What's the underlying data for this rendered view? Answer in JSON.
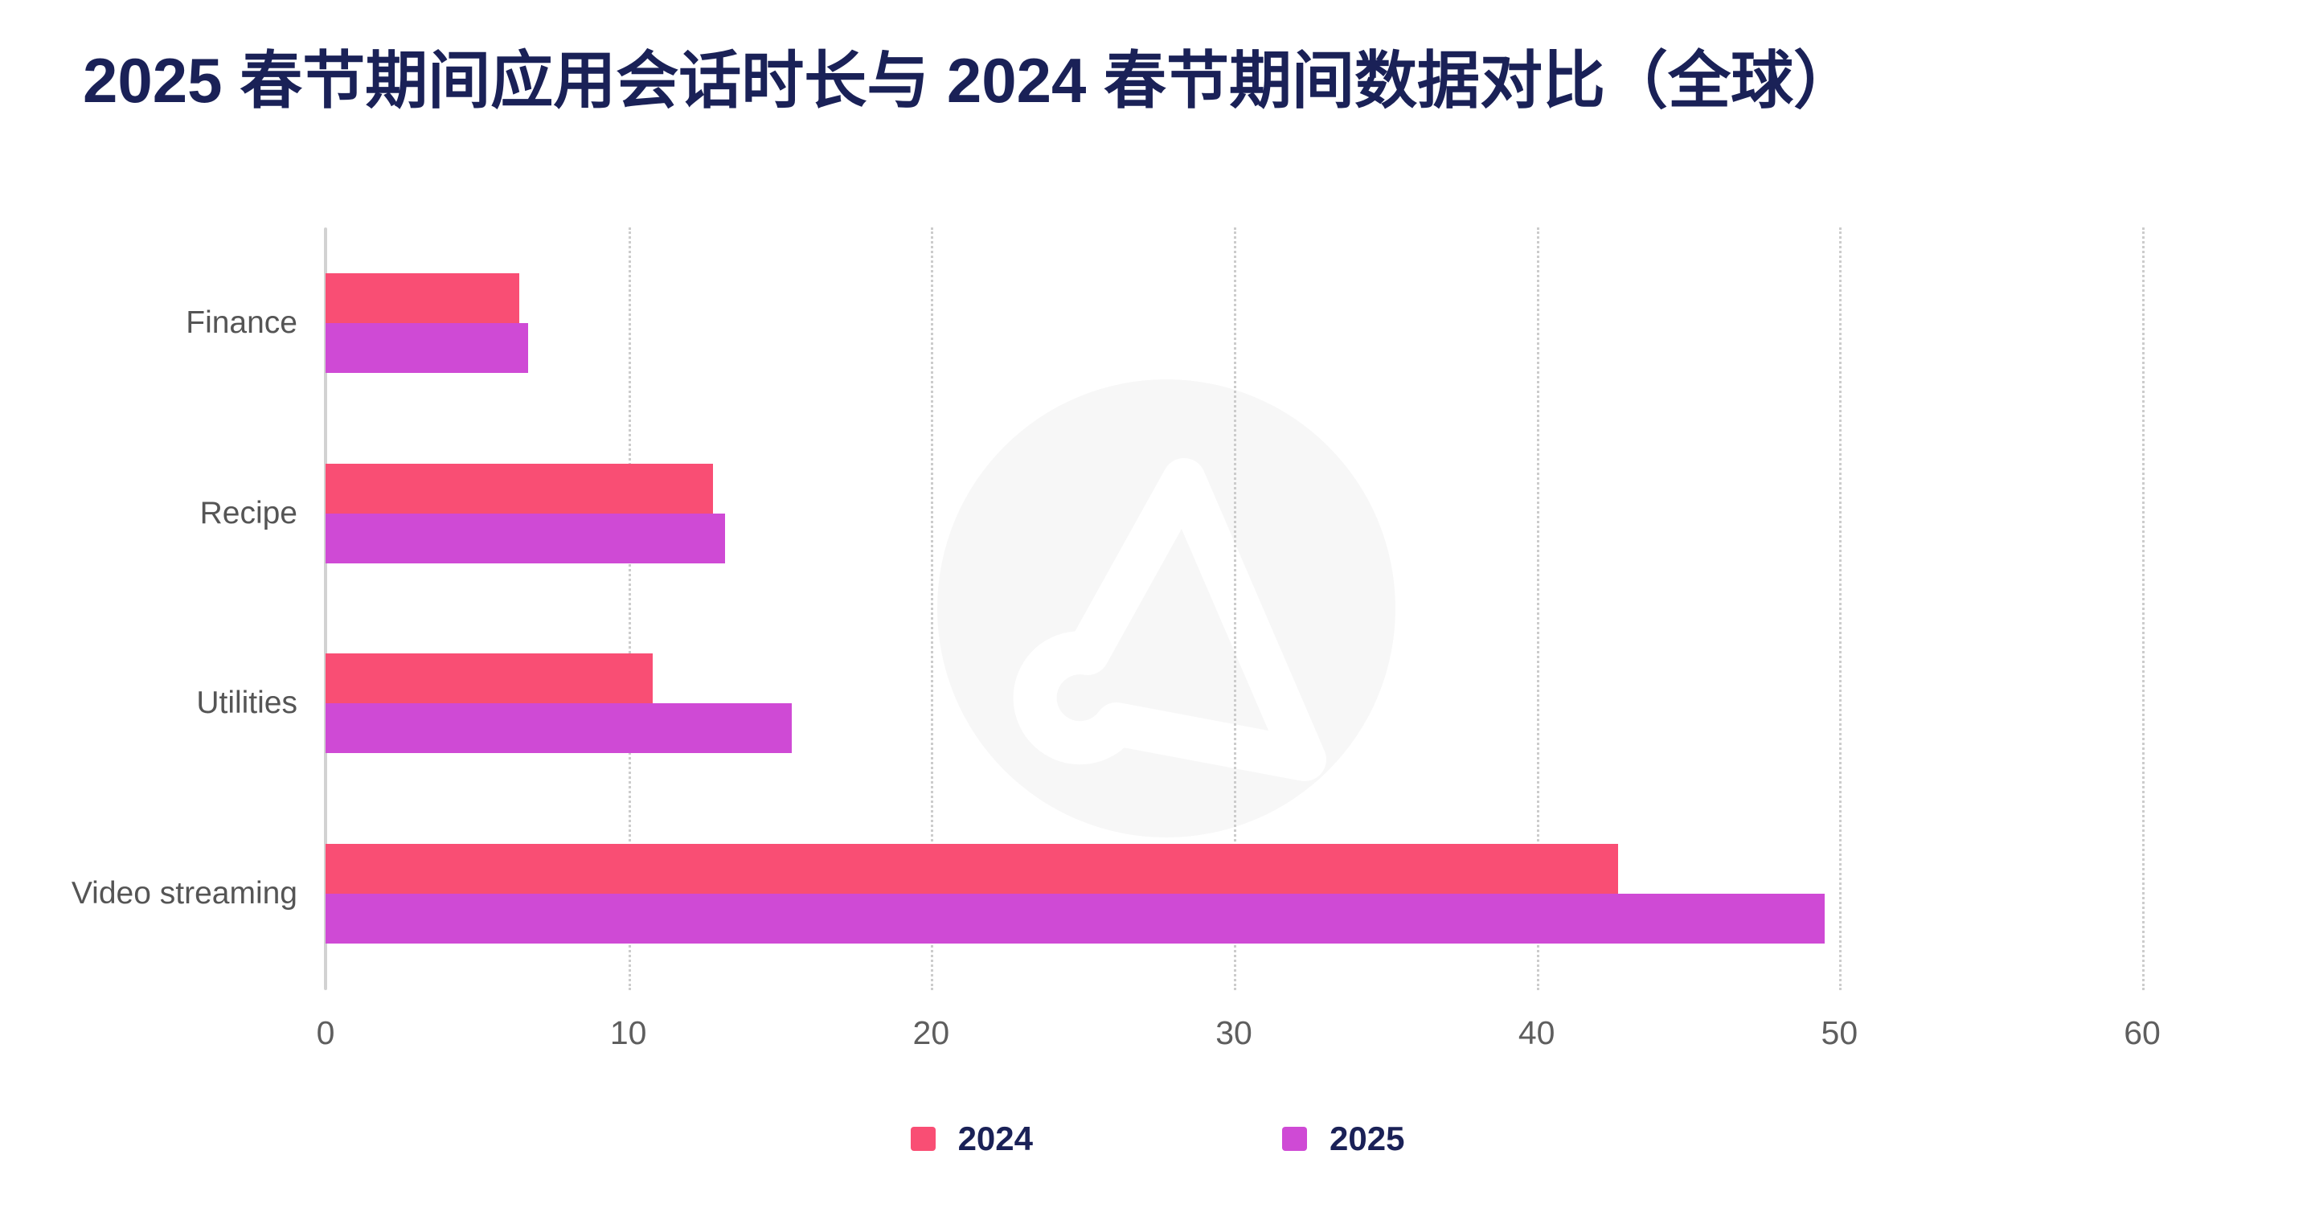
{
  "title": {
    "text": "2025 春节期间应用会话时长与 2024 春节期间数据对比（全球）",
    "color": "#1a2157"
  },
  "chart_data": {
    "type": "bar",
    "orientation": "horizontal",
    "title": "2025 春节期间应用会话时长与 2024 春节期间数据对比（全球）",
    "categories": [
      "Finance",
      "Recipe",
      "Utilities",
      "Video streaming"
    ],
    "series": [
      {
        "name": "2024",
        "color": "#f94e74",
        "values": [
          6.4,
          12.8,
          10.8,
          42.7
        ]
      },
      {
        "name": "2025",
        "color": "#cf4ad5",
        "values": [
          6.7,
          13.2,
          15.4,
          49.5
        ]
      }
    ],
    "xlabel": "",
    "ylabel": "",
    "xlim": [
      0,
      60
    ],
    "xticks": [
      0,
      10,
      20,
      30,
      40,
      50,
      60
    ],
    "grid": "vertical-dotted",
    "legend_position": "bottom-center"
  },
  "legend": {
    "items": [
      {
        "label": "2024",
        "color": "#f94e74"
      },
      {
        "label": "2025",
        "color": "#cf4ad5"
      }
    ]
  },
  "watermark": {
    "name": "adjust-logo",
    "circle_color": "#f7f7f7",
    "glyph_color": "#ffffff"
  },
  "style_colors": {
    "axis_line": "#d2d2d2",
    "gridline": "#cccccc",
    "category_label": "#555555",
    "tick_label": "#5e5e5e",
    "title_navy": "#1a2157"
  }
}
